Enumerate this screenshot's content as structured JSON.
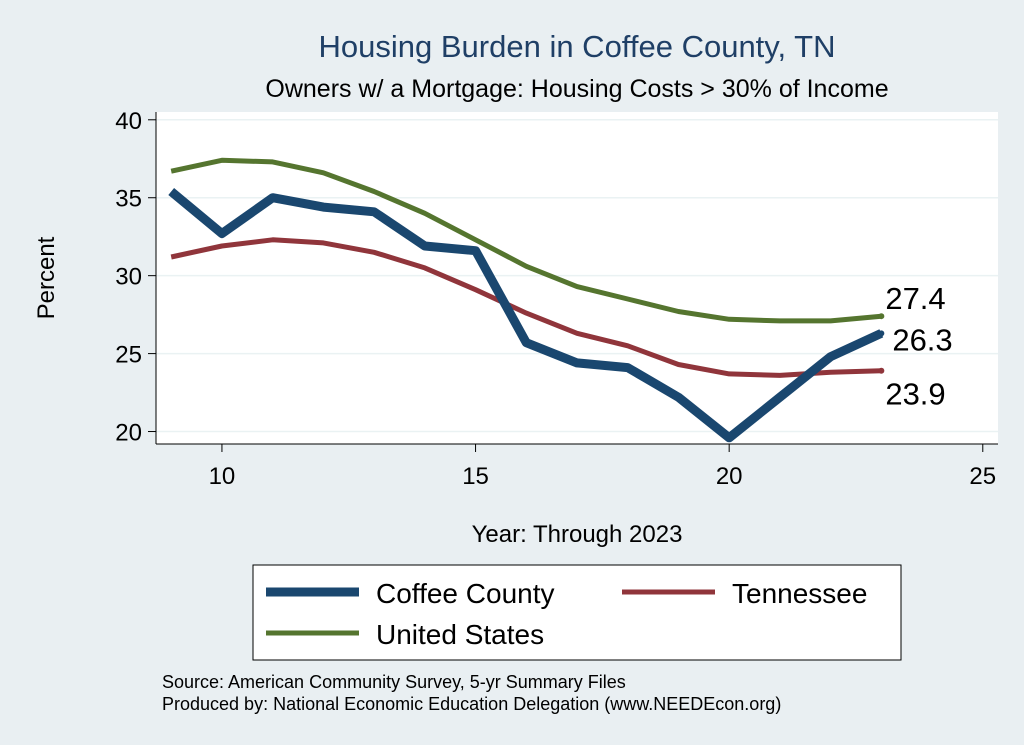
{
  "chart_data": {
    "type": "line",
    "title": "Housing Burden in Coffee County, TN",
    "subtitle": "Owners w/ a Mortgage: Housing Costs > 30% of Income",
    "xlabel": "Year: Through 2023",
    "ylabel": "Percent",
    "xlim": [
      8.7,
      25.3
    ],
    "ylim": [
      19.2,
      40.5
    ],
    "xticks": [
      10,
      15,
      20,
      25
    ],
    "yticks": [
      20,
      25,
      30,
      35,
      40
    ],
    "grid": true,
    "x": [
      9,
      10,
      11,
      12,
      13,
      14,
      15,
      16,
      17,
      18,
      19,
      20,
      21,
      22,
      23
    ],
    "series": [
      {
        "name": "Coffee County",
        "color": "#1a476f",
        "values": [
          35.4,
          32.7,
          35.0,
          34.4,
          34.1,
          31.9,
          31.6,
          25.7,
          24.4,
          24.1,
          22.2,
          19.6,
          22.2,
          24.8,
          26.3
        ],
        "end_label": "26.3"
      },
      {
        "name": "Tennessee",
        "color": "#90353b",
        "values": [
          31.2,
          31.9,
          32.3,
          32.1,
          31.5,
          30.5,
          29.1,
          27.6,
          26.3,
          25.5,
          24.3,
          23.7,
          23.6,
          23.8,
          23.9
        ],
        "end_label": "23.9"
      },
      {
        "name": "United States",
        "color": "#55752f",
        "values": [
          36.7,
          37.4,
          37.3,
          36.6,
          35.4,
          34.0,
          32.3,
          30.6,
          29.3,
          28.5,
          27.7,
          27.2,
          27.1,
          27.1,
          27.4
        ],
        "end_label": "27.4"
      }
    ],
    "legend": {
      "position": "bottom",
      "entries": [
        "Coffee County",
        "Tennessee",
        "United States"
      ]
    },
    "notes": [
      "Source: American Community Survey, 5-yr Summary Files",
      "Produced by: National Economic Education Delegation (www.NEEDEcon.org)"
    ]
  },
  "colors": {
    "background": "#e9eff2",
    "plot_background": "#ffffff",
    "title": "#1f3f66"
  }
}
